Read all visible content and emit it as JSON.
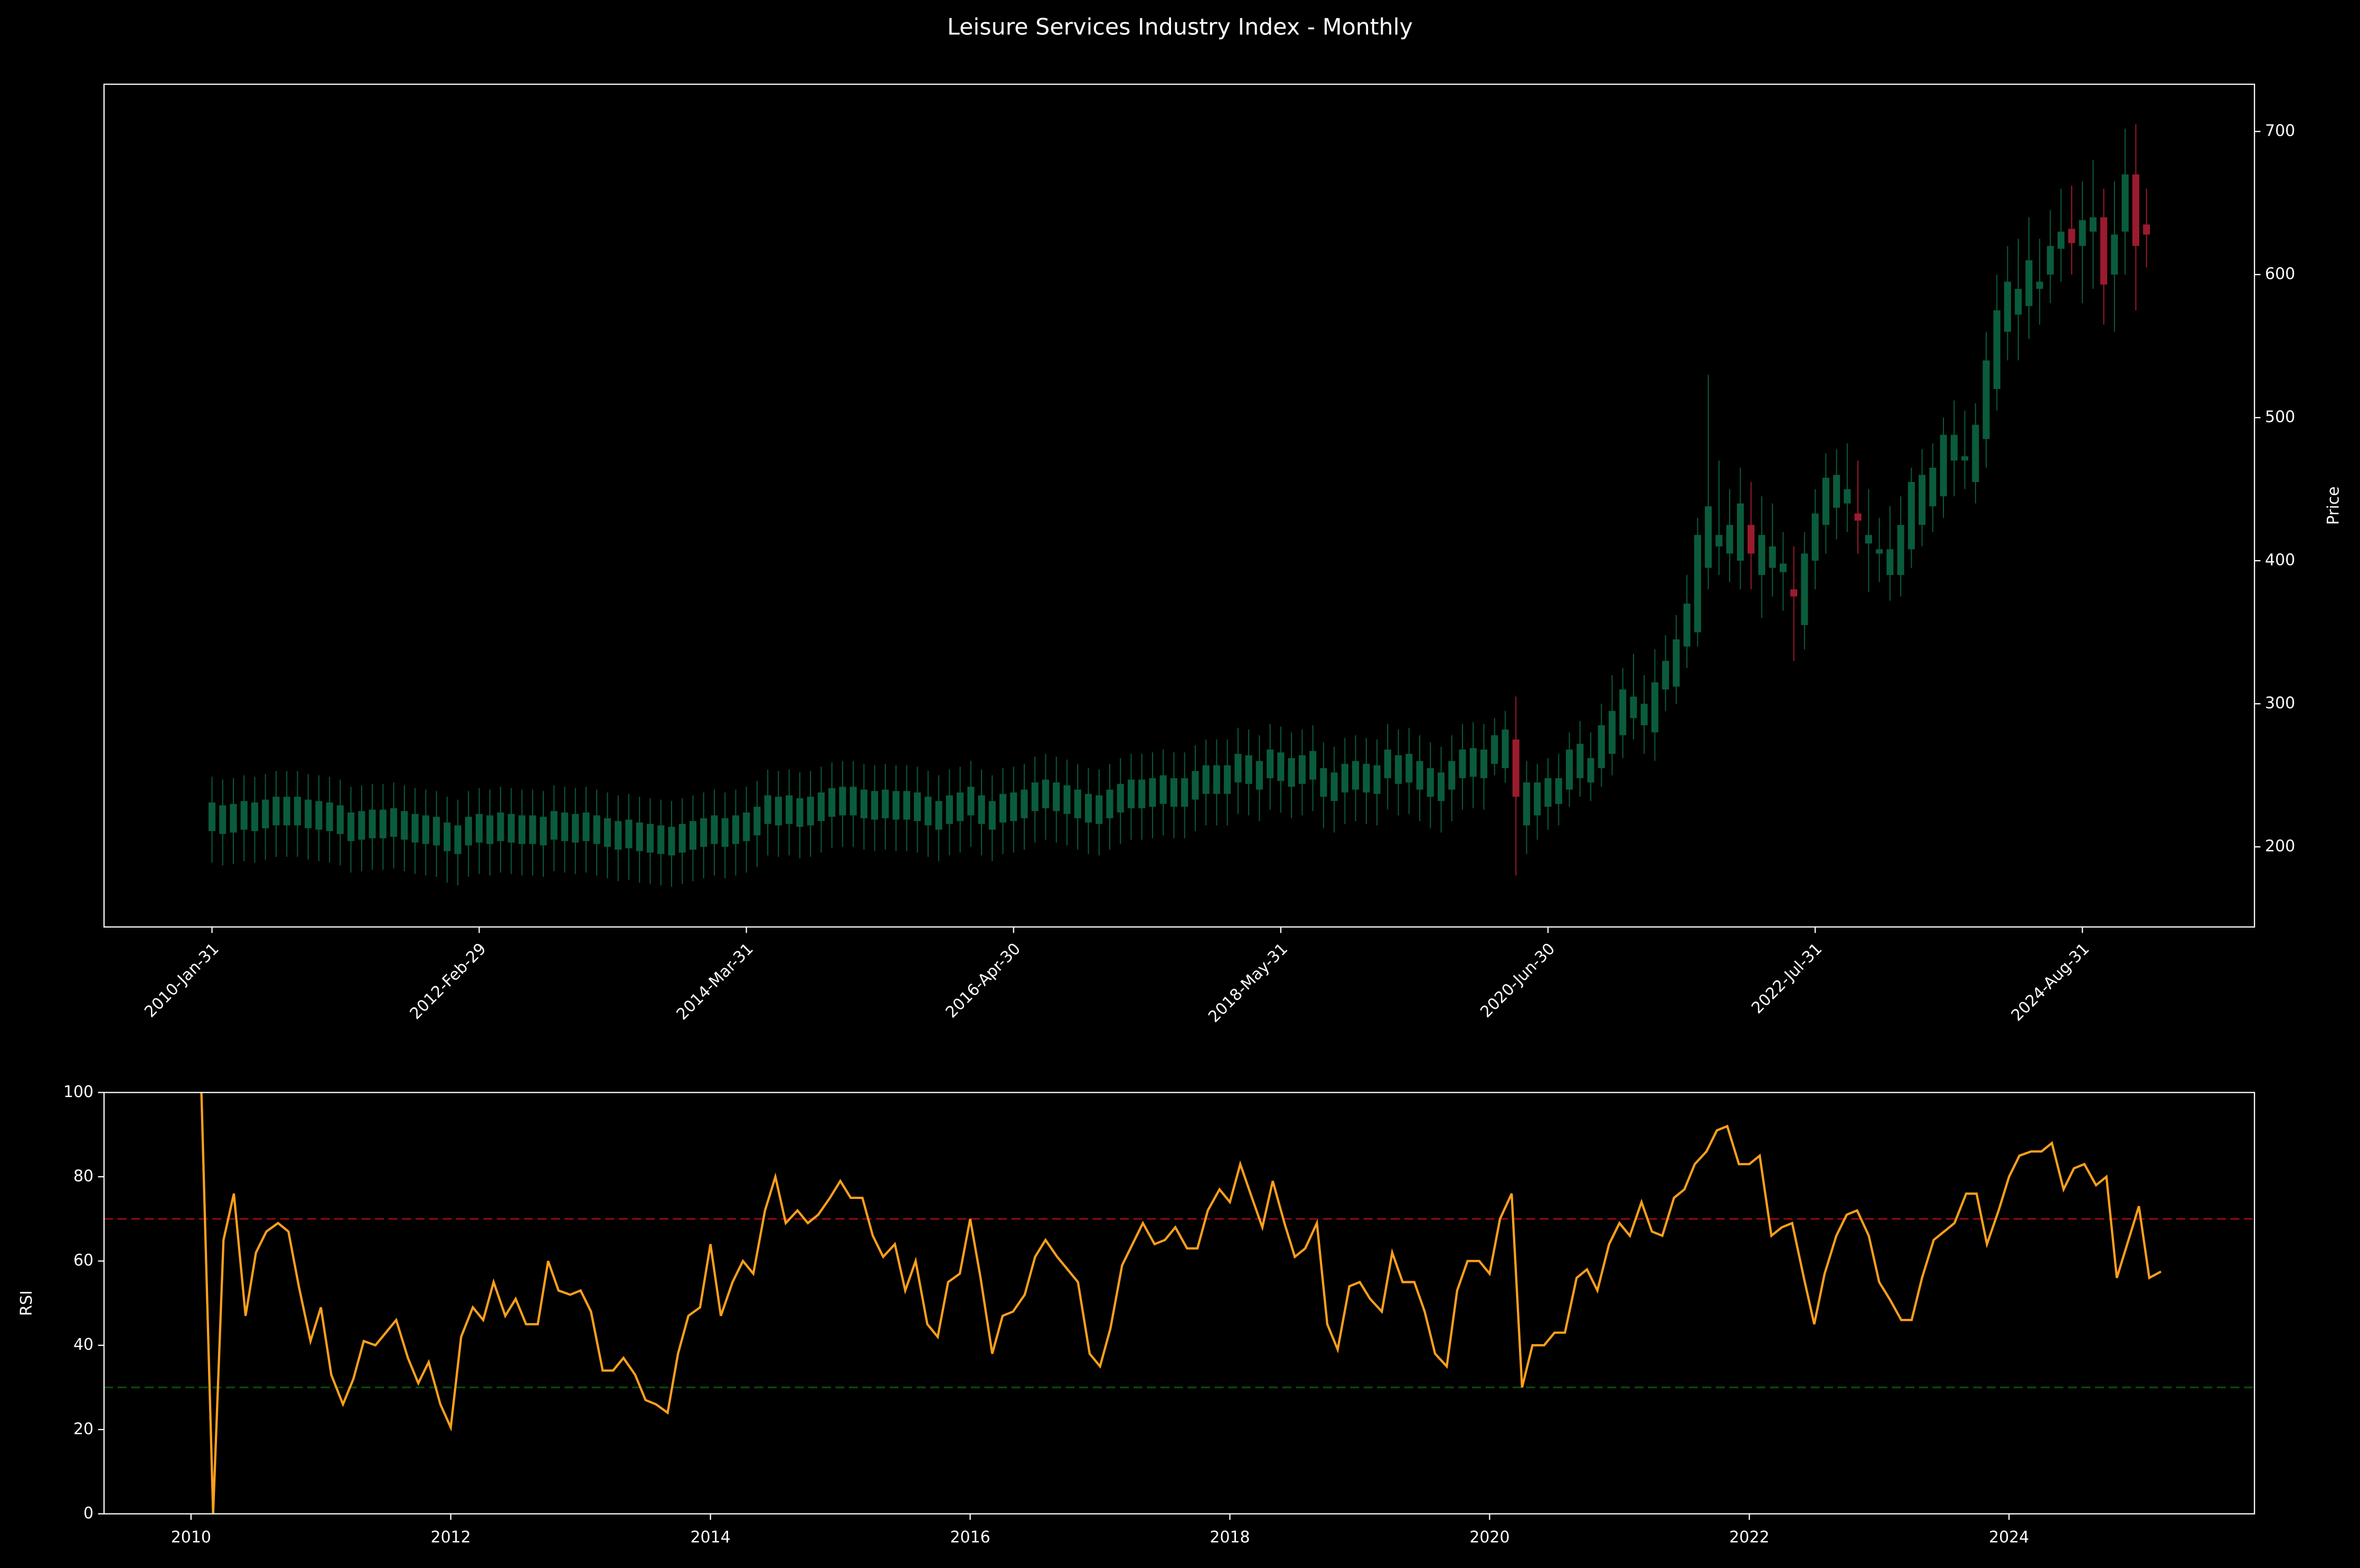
{
  "chart_data": [
    {
      "type": "candlestick",
      "title": "Leisure Services Industry Index - Monthly",
      "categories": [
        "2010-Jan-31",
        null,
        null,
        null,
        null,
        null,
        null,
        null,
        null,
        null,
        null,
        null,
        null,
        null,
        null,
        null,
        null,
        null,
        null,
        null,
        null,
        null,
        null,
        null,
        null,
        "2012-Feb-29",
        null,
        null,
        null,
        null,
        null,
        null,
        null,
        null,
        null,
        null,
        null,
        null,
        null,
        null,
        null,
        null,
        null,
        null,
        null,
        null,
        null,
        null,
        null,
        null,
        "2014-Mar-31",
        null,
        null,
        null,
        null,
        null,
        null,
        null,
        null,
        null,
        null,
        null,
        null,
        null,
        null,
        null,
        null,
        null,
        null,
        null,
        null,
        null,
        null,
        null,
        null,
        "2016-Apr-30",
        null,
        null,
        null,
        null,
        null,
        null,
        null,
        null,
        null,
        null,
        null,
        null,
        null,
        null,
        null,
        null,
        null,
        null,
        null,
        null,
        null,
        null,
        null,
        null,
        "2018-May-31",
        null,
        null,
        null,
        null,
        null,
        null,
        null,
        null,
        null,
        null,
        null,
        null,
        null,
        null,
        null,
        null,
        null,
        null,
        null,
        null,
        null,
        null,
        null,
        null,
        "2020-Jun-30",
        null,
        null,
        null,
        null,
        null,
        null,
        null,
        null,
        null,
        null,
        null,
        null,
        null,
        null,
        null,
        null,
        null,
        null,
        null,
        null,
        null,
        null,
        null,
        null,
        "2022-Jul-31",
        null,
        null,
        null,
        null,
        null,
        null,
        null,
        null,
        null,
        null,
        null,
        null,
        null,
        null,
        null,
        null,
        null,
        null,
        null,
        null,
        null,
        null,
        null,
        null,
        "2024-Aug-31",
        null,
        null,
        null,
        null,
        null,
        null
      ],
      "open": [
        211,
        209,
        210,
        212,
        211,
        213,
        215,
        215,
        215,
        213,
        212,
        211,
        209,
        204,
        205,
        206,
        206,
        207,
        205,
        203,
        202,
        201,
        197,
        195,
        201,
        203,
        202,
        204,
        203,
        202,
        202,
        201,
        205,
        204,
        203,
        204,
        202,
        200,
        198,
        199,
        197,
        196,
        195,
        194,
        196,
        198,
        200,
        202,
        200,
        202,
        204,
        208,
        216,
        215,
        216,
        214,
        215,
        218,
        221,
        222,
        222,
        220,
        219,
        220,
        219,
        219,
        218,
        215,
        212,
        216,
        218,
        222,
        216,
        212,
        217,
        218,
        220,
        225,
        227,
        225,
        223,
        220,
        217,
        216,
        220,
        224,
        227,
        227,
        228,
        230,
        228,
        228,
        233,
        237,
        237,
        237,
        245,
        244,
        240,
        248,
        246,
        242,
        244,
        247,
        235,
        232,
        238,
        240,
        238,
        237,
        248,
        244,
        245,
        240,
        235,
        232,
        240,
        248,
        249,
        248,
        258,
        255,
        275,
        215,
        222,
        228,
        230,
        240,
        248,
        245,
        255,
        265,
        278,
        290,
        285,
        280,
        310,
        312,
        340,
        350,
        395,
        410,
        405,
        400,
        425,
        390,
        395,
        392,
        380,
        355,
        400,
        425,
        437,
        440,
        433,
        412,
        405,
        390,
        390,
        408,
        425,
        438,
        445,
        470,
        470,
        455,
        485,
        520,
        560,
        572,
        578,
        590,
        600,
        618,
        632,
        620,
        630,
        640,
        600,
        630,
        670,
        635
      ],
      "high": [
        249,
        247,
        248,
        250,
        249,
        251,
        253,
        253,
        253,
        251,
        250,
        249,
        247,
        242,
        243,
        244,
        244,
        245,
        243,
        241,
        240,
        239,
        235,
        233,
        239,
        241,
        240,
        242,
        241,
        240,
        240,
        239,
        243,
        242,
        241,
        242,
        240,
        238,
        236,
        237,
        235,
        234,
        233,
        232,
        234,
        236,
        238,
        240,
        238,
        240,
        242,
        246,
        254,
        253,
        254,
        252,
        253,
        256,
        259,
        260,
        260,
        258,
        257,
        258,
        257,
        257,
        256,
        253,
        250,
        254,
        256,
        260,
        254,
        250,
        255,
        256,
        258,
        263,
        265,
        263,
        261,
        258,
        255,
        254,
        258,
        262,
        265,
        265,
        266,
        268,
        266,
        266,
        271,
        275,
        275,
        275,
        283,
        282,
        278,
        286,
        284,
        280,
        282,
        285,
        273,
        270,
        276,
        278,
        276,
        275,
        286,
        282,
        283,
        278,
        273,
        270,
        278,
        286,
        287,
        286,
        290,
        295,
        305,
        260,
        258,
        262,
        265,
        280,
        288,
        280,
        300,
        320,
        325,
        335,
        320,
        338,
        348,
        362,
        390,
        430,
        530,
        470,
        450,
        465,
        455,
        445,
        440,
        420,
        410,
        420,
        450,
        475,
        478,
        482,
        470,
        450,
        430,
        438,
        445,
        465,
        478,
        482,
        500,
        512,
        505,
        510,
        560,
        600,
        620,
        625,
        640,
        625,
        645,
        660,
        662,
        665,
        680,
        660,
        665,
        702,
        705,
        660
      ],
      "low": [
        189,
        187,
        188,
        190,
        189,
        191,
        193,
        193,
        193,
        191,
        190,
        189,
        187,
        182,
        183,
        184,
        184,
        185,
        183,
        181,
        180,
        179,
        175,
        173,
        179,
        181,
        180,
        182,
        181,
        180,
        180,
        179,
        183,
        182,
        181,
        182,
        180,
        178,
        176,
        177,
        175,
        174,
        173,
        172,
        174,
        176,
        178,
        180,
        178,
        180,
        182,
        186,
        194,
        193,
        194,
        192,
        193,
        196,
        199,
        200,
        200,
        198,
        197,
        198,
        197,
        197,
        196,
        193,
        190,
        194,
        196,
        200,
        194,
        190,
        195,
        196,
        198,
        203,
        205,
        203,
        201,
        198,
        195,
        194,
        198,
        202,
        205,
        205,
        206,
        208,
        206,
        206,
        211,
        215,
        215,
        215,
        223,
        222,
        218,
        226,
        224,
        220,
        222,
        225,
        213,
        210,
        216,
        218,
        216,
        215,
        226,
        222,
        223,
        218,
        213,
        210,
        218,
        226,
        227,
        226,
        250,
        245,
        180,
        195,
        205,
        212,
        215,
        228,
        235,
        232,
        242,
        250,
        262,
        275,
        265,
        260,
        295,
        300,
        325,
        340,
        380,
        390,
        385,
        380,
        380,
        360,
        375,
        365,
        330,
        338,
        380,
        405,
        415,
        420,
        405,
        378,
        385,
        372,
        375,
        395,
        410,
        420,
        430,
        445,
        450,
        440,
        465,
        505,
        540,
        540,
        555,
        565,
        580,
        595,
        600,
        580,
        590,
        565,
        560,
        600,
        575,
        605
      ],
      "close": [
        231,
        229,
        230,
        232,
        231,
        233,
        235,
        235,
        235,
        233,
        232,
        231,
        229,
        224,
        225,
        226,
        226,
        227,
        225,
        223,
        222,
        221,
        217,
        215,
        221,
        223,
        222,
        224,
        223,
        222,
        222,
        221,
        225,
        224,
        223,
        224,
        222,
        220,
        218,
        219,
        217,
        216,
        215,
        214,
        216,
        218,
        220,
        222,
        220,
        222,
        224,
        228,
        236,
        235,
        236,
        234,
        235,
        238,
        241,
        242,
        242,
        240,
        239,
        240,
        239,
        239,
        238,
        235,
        232,
        236,
        238,
        242,
        236,
        232,
        237,
        238,
        240,
        245,
        247,
        245,
        243,
        240,
        237,
        236,
        240,
        244,
        247,
        247,
        248,
        250,
        248,
        248,
        253,
        257,
        257,
        257,
        265,
        264,
        260,
        268,
        266,
        262,
        264,
        267,
        255,
        252,
        258,
        260,
        258,
        257,
        268,
        264,
        265,
        260,
        255,
        252,
        260,
        268,
        269,
        268,
        278,
        282,
        235,
        245,
        245,
        248,
        248,
        268,
        272,
        262,
        285,
        295,
        310,
        305,
        300,
        315,
        330,
        345,
        370,
        418,
        438,
        418,
        425,
        440,
        405,
        418,
        410,
        398,
        375,
        405,
        433,
        458,
        460,
        450,
        428,
        418,
        408,
        408,
        425,
        455,
        460,
        465,
        488,
        488,
        473,
        495,
        540,
        575,
        595,
        590,
        610,
        595,
        620,
        630,
        622,
        638,
        640,
        593,
        628,
        670,
        620,
        628
      ],
      "up_color": "#0a5c3c",
      "down_color": "#9b1b2e",
      "ylabel": "Price",
      "ylim": [
        144,
        733
      ],
      "yticks": [
        200,
        300,
        400,
        500,
        600,
        700
      ]
    },
    {
      "type": "line",
      "ylabel": "RSI",
      "x": [
        2010.08,
        2010.17,
        2010.25,
        2010.33,
        2010.42,
        2010.5,
        2010.58,
        2010.67,
        2010.75,
        2010.83,
        2010.92,
        2011.0,
        2011.08,
        2011.17,
        2011.25,
        2011.33,
        2011.42,
        2011.5,
        2011.58,
        2011.67,
        2011.75,
        2011.83,
        2011.92,
        2012.0,
        2012.08,
        2012.17,
        2012.25,
        2012.33,
        2012.42,
        2012.5,
        2012.58,
        2012.67,
        2012.75,
        2012.83,
        2012.92,
        2013.0,
        2013.08,
        2013.17,
        2013.25,
        2013.33,
        2013.42,
        2013.5,
        2013.58,
        2013.67,
        2013.75,
        2013.83,
        2013.92,
        2014.0,
        2014.08,
        2014.17,
        2014.25,
        2014.33,
        2014.42,
        2014.5,
        2014.58,
        2014.67,
        2014.75,
        2014.83,
        2014.92,
        2015.0,
        2015.08,
        2015.17,
        2015.25,
        2015.33,
        2015.42,
        2015.5,
        2015.58,
        2015.67,
        2015.75,
        2015.83,
        2015.92,
        2016.0,
        2016.08,
        2016.17,
        2016.25,
        2016.33,
        2016.42,
        2016.5,
        2016.58,
        2016.67,
        2016.75,
        2016.83,
        2016.92,
        2017.0,
        2017.08,
        2017.17,
        2017.25,
        2017.33,
        2017.42,
        2017.5,
        2017.58,
        2017.67,
        2017.75,
        2017.83,
        2017.92,
        2018.0,
        2018.08,
        2018.17,
        2018.25,
        2018.33,
        2018.42,
        2018.5,
        2018.58,
        2018.67,
        2018.75,
        2018.83,
        2018.92,
        2019.0,
        2019.08,
        2019.17,
        2019.25,
        2019.33,
        2019.42,
        2019.5,
        2019.58,
        2019.67,
        2019.75,
        2019.83,
        2019.92,
        2020.0,
        2020.08,
        2020.17,
        2020.25,
        2020.33,
        2020.42,
        2020.5,
        2020.58,
        2020.67,
        2020.75,
        2020.83,
        2020.92,
        2021.0,
        2021.08,
        2021.17,
        2021.25,
        2021.33,
        2021.42,
        2021.5,
        2021.58,
        2021.67,
        2021.75,
        2021.83,
        2021.92,
        2022.0,
        2022.08,
        2022.17,
        2022.25,
        2022.33,
        2022.42,
        2022.5,
        2022.58,
        2022.67,
        2022.75,
        2022.83,
        2022.92,
        2023.0,
        2023.08,
        2023.17,
        2023.25,
        2023.33,
        2023.42,
        2023.5,
        2023.58,
        2023.67,
        2023.75,
        2023.83,
        2023.92,
        2024.0,
        2024.08,
        2024.17,
        2024.25,
        2024.33,
        2024.42,
        2024.5,
        2024.58,
        2024.67,
        2024.75,
        2024.83,
        2024.92,
        2025.0,
        2025.08,
        2025.17
      ],
      "values": [
        100,
        0,
        65,
        76,
        47,
        62,
        67,
        69,
        67,
        54,
        41,
        49,
        33,
        26,
        32,
        41,
        40,
        43,
        46,
        37,
        31,
        36,
        26,
        20.5,
        42,
        49,
        46,
        55,
        47,
        51,
        45,
        45,
        60,
        53,
        52,
        53,
        48,
        34,
        34,
        37,
        33,
        27,
        26,
        24,
        38,
        47,
        49,
        64,
        47,
        55,
        60,
        57,
        72,
        80,
        69,
        72,
        69,
        71,
        75,
        79,
        75,
        75,
        66,
        61,
        64,
        53,
        60,
        45,
        42,
        55,
        57,
        70,
        56,
        38,
        47,
        48,
        52,
        61,
        65,
        61,
        58,
        55,
        38,
        35,
        44,
        59,
        64,
        69,
        64,
        65,
        68,
        63,
        63,
        72,
        77,
        74,
        83,
        75,
        68,
        79,
        69,
        61,
        63,
        69,
        45,
        39,
        54,
        55,
        51,
        48,
        62,
        55,
        55,
        48,
        38,
        35,
        53,
        60,
        60,
        57,
        70,
        76,
        30,
        40,
        40,
        43,
        43,
        56,
        58,
        53,
        64,
        69,
        66,
        74,
        67,
        66,
        75,
        77,
        83,
        86,
        91,
        92,
        83,
        83,
        85,
        66,
        68,
        69,
        56,
        45,
        57,
        66,
        71,
        72,
        66,
        55,
        51,
        46,
        46,
        56,
        65,
        67,
        69,
        76,
        76,
        64,
        72,
        80,
        85,
        86,
        86,
        88,
        77,
        82,
        83,
        78,
        80,
        56,
        65,
        73,
        56,
        57.5
      ],
      "color": "#ffa01c",
      "hlines": [
        {
          "value": 70,
          "color": "#a01010"
        },
        {
          "value": 30,
          "color": "#0d5a0d"
        }
      ],
      "xlim": [
        2009.33,
        2025.89
      ],
      "xticks": [
        2010,
        2012,
        2014,
        2016,
        2018,
        2020,
        2022,
        2024
      ],
      "ylim": [
        0,
        100
      ],
      "yticks": [
        0,
        20,
        40,
        60,
        80,
        100
      ]
    }
  ]
}
